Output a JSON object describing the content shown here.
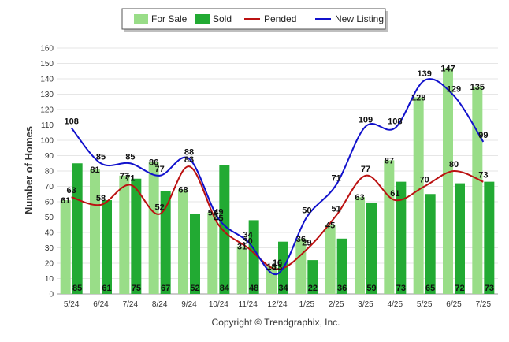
{
  "chart_data": {
    "type": "bar",
    "ylabel": "Number of Homes",
    "xlabel": "",
    "ylim": [
      0,
      160
    ],
    "yticks": [
      0,
      10,
      20,
      30,
      40,
      50,
      60,
      70,
      80,
      90,
      100,
      110,
      120,
      130,
      140,
      150,
      160
    ],
    "grid": true,
    "legend_position": "top-center",
    "categories": [
      "5/24",
      "6/24",
      "7/24",
      "8/24",
      "9/24",
      "10/24",
      "11/24",
      "12/24",
      "1/25",
      "2/25",
      "3/25",
      "4/25",
      "5/25",
      "6/25",
      "7/25"
    ],
    "series": [
      {
        "name": "For Sale",
        "kind": "bar",
        "color": "#99dd88",
        "values": [
          61,
          81,
          77,
          86,
          68,
          53,
          31,
          18,
          36,
          45,
          63,
          87,
          128,
          147,
          135
        ]
      },
      {
        "name": "Sold",
        "kind": "bar",
        "color": "#22aa33",
        "values": [
          85,
          61,
          75,
          67,
          52,
          84,
          48,
          34,
          22,
          36,
          59,
          73,
          65,
          72,
          73
        ]
      },
      {
        "name": "Pended",
        "kind": "line",
        "color": "#bb1111",
        "values": [
          63,
          58,
          71,
          52,
          83,
          45,
          30,
          16,
          29,
          51,
          77,
          61,
          70,
          80,
          73
        ]
      },
      {
        "name": "New Listing",
        "kind": "line",
        "color": "#1111cc",
        "values": [
          108,
          85,
          85,
          77,
          88,
          49,
          34,
          13,
          50,
          71,
          109,
          108,
          139,
          129,
          99
        ]
      }
    ],
    "footer": "Copyright © Trendgraphix, Inc."
  }
}
